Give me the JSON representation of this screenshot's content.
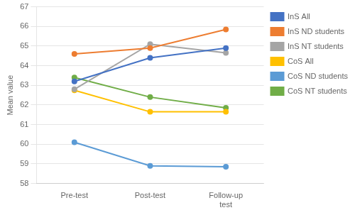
{
  "chart_data": {
    "type": "line",
    "categories": [
      "Pre-test",
      "Post-test",
      "Follow-up\ntest"
    ],
    "series": [
      {
        "name": "InS All",
        "color": "#4472C4",
        "marker": "circle",
        "values": [
          63.2,
          64.4,
          64.9
        ]
      },
      {
        "name": "InS ND students",
        "color": "#ED7D31",
        "marker": "circle",
        "values": [
          64.6,
          64.9,
          65.85
        ]
      },
      {
        "name": "InS NT students",
        "color": "#A5A5A5",
        "marker": "circle",
        "values": [
          62.8,
          65.1,
          64.65
        ]
      },
      {
        "name": "CoS All",
        "color": "#FFC000",
        "marker": "circle",
        "values": [
          62.75,
          61.65,
          61.65
        ]
      },
      {
        "name": "CoS ND students",
        "color": "#5B9BD5",
        "marker": "circle",
        "values": [
          60.1,
          58.9,
          58.85
        ]
      },
      {
        "name": "CoS NT students",
        "color": "#70AD47",
        "marker": "circle",
        "values": [
          63.4,
          62.4,
          61.85
        ]
      }
    ],
    "ylabel": "Mean value",
    "ylim": [
      58,
      67
    ],
    "yticks": [
      58,
      59,
      60,
      61,
      62,
      63,
      64,
      65,
      66,
      67
    ],
    "grid": true,
    "legend": "right"
  }
}
